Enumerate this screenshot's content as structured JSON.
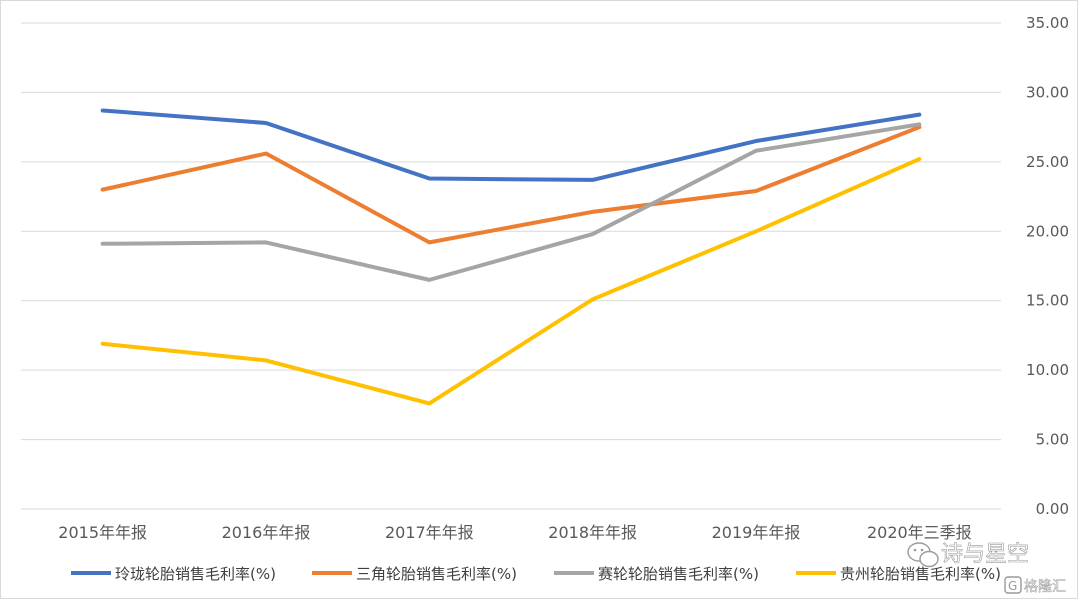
{
  "chart_data": {
    "type": "line",
    "title": "",
    "xlabel": "",
    "ylabel": "",
    "categories": [
      "2015年年报",
      "2016年年报",
      "2017年年报",
      "2018年年报",
      "2019年年报",
      "2020年三季报"
    ],
    "ylim": [
      0,
      35
    ],
    "yticks": [
      "0.00",
      "5.00",
      "10.00",
      "15.00",
      "20.00",
      "25.00",
      "30.00",
      "35.00"
    ],
    "y_axis_side": "right",
    "grid": true,
    "legend_position": "bottom",
    "series": [
      {
        "name": "玲珑轮胎销售毛利率(%)",
        "color": "#4472c4",
        "values": [
          28.7,
          27.8,
          23.8,
          23.7,
          26.5,
          28.4
        ]
      },
      {
        "name": "三角轮胎销售毛利率(%)",
        "color": "#ed7d31",
        "values": [
          23.0,
          25.6,
          19.2,
          21.4,
          22.9,
          27.5
        ]
      },
      {
        "name": "赛轮轮胎销售毛利率(%)",
        "color": "#a5a5a5",
        "values": [
          19.1,
          19.2,
          16.5,
          19.8,
          25.8,
          27.7
        ]
      },
      {
        "name": "贵州轮胎销售毛利率(%)",
        "color": "#ffc000",
        "values": [
          11.9,
          10.7,
          7.6,
          15.1,
          20.0,
          25.2
        ]
      }
    ]
  },
  "watermark": {
    "icon": "wechat-icon",
    "text": "诗与星空",
    "badge_icon": "gelonghui-logo-icon",
    "badge_text": "格隆汇"
  }
}
